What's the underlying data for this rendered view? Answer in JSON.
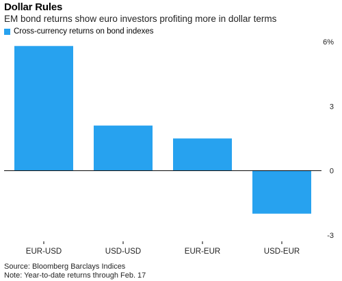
{
  "header": {
    "title": "Dollar Rules",
    "subtitle": "EM bond returns show euro investors profiting more in dollar terms"
  },
  "legend": {
    "label": "Cross-currency returns on bond indexes"
  },
  "colors": {
    "bar": "#27a2ef",
    "axis": "#000000",
    "grid": "#d9d9d9"
  },
  "chart_data": {
    "type": "bar",
    "categories": [
      "EUR-USD",
      "USD-USD",
      "EUR-EUR",
      "USD-EUR"
    ],
    "series": [
      {
        "name": "Cross-currency returns on bond indexes",
        "values": [
          5.8,
          2.1,
          1.5,
          -2.0
        ]
      }
    ],
    "ylim": [
      -3,
      6
    ],
    "yticks": [
      6,
      3,
      0,
      -3
    ],
    "ytick_labels": [
      "6%",
      "3",
      "0",
      "-3"
    ],
    "grid": true,
    "legend": "top-left"
  },
  "footer": {
    "source": "Source: Bloomberg Barclays Indices",
    "note": "Note: Year-to-date returns through Feb. 17"
  }
}
